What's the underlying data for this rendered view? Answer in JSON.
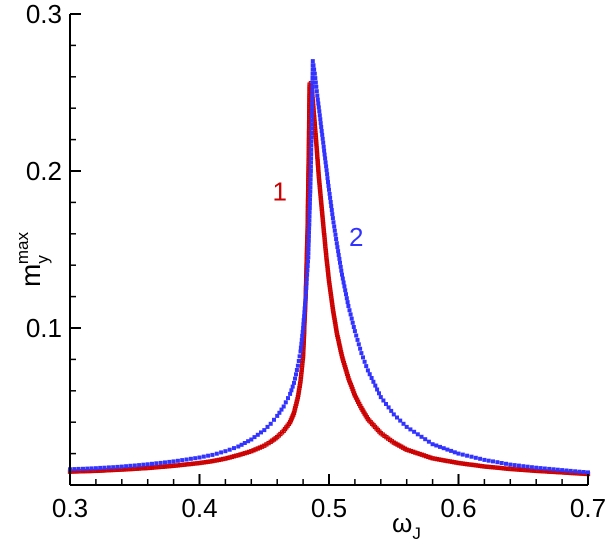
{
  "chart_data": {
    "type": "scatter",
    "xlabel": {
      "main": "ω",
      "sub": "J"
    },
    "ylabel": {
      "main": "m",
      "sub": "y",
      "sup": "max"
    },
    "xlim": [
      0.3,
      0.7
    ],
    "ylim": [
      0.0,
      0.3
    ],
    "x_ticks": [
      0.3,
      0.4,
      0.5,
      0.6,
      0.7
    ],
    "x_tick_labels": [
      "0.3",
      "0.4",
      "0.5",
      "0.6",
      "0.7"
    ],
    "y_ticks": [
      0.1,
      0.2,
      0.3
    ],
    "y_tick_labels": [
      "0.1",
      "0.2",
      "0.3"
    ],
    "grid": false,
    "legend": "none",
    "series": [
      {
        "name": "1",
        "color": "#cc0000",
        "marker": "small-open-square-with-line",
        "points": [
          [
            0.3,
            0.0085
          ],
          [
            0.32,
            0.009
          ],
          [
            0.34,
            0.0098
          ],
          [
            0.36,
            0.0108
          ],
          [
            0.38,
            0.0122
          ],
          [
            0.4,
            0.014
          ],
          [
            0.41,
            0.0152
          ],
          [
            0.42,
            0.0168
          ],
          [
            0.43,
            0.019
          ],
          [
            0.44,
            0.0215
          ],
          [
            0.45,
            0.025
          ],
          [
            0.455,
            0.0275
          ],
          [
            0.46,
            0.0305
          ],
          [
            0.465,
            0.0345
          ],
          [
            0.47,
            0.04
          ],
          [
            0.473,
            0.046
          ],
          [
            0.476,
            0.056
          ],
          [
            0.478,
            0.066
          ],
          [
            0.48,
            0.082
          ],
          [
            0.482,
            0.12
          ],
          [
            0.4835,
            0.165
          ],
          [
            0.4845,
            0.22
          ],
          [
            0.485,
            0.255
          ],
          [
            0.486,
            0.256
          ],
          [
            0.487,
            0.25
          ],
          [
            0.488,
            0.24
          ],
          [
            0.49,
            0.22
          ],
          [
            0.492,
            0.198
          ],
          [
            0.494,
            0.18
          ],
          [
            0.496,
            0.162
          ],
          [
            0.498,
            0.145
          ],
          [
            0.5,
            0.13
          ],
          [
            0.503,
            0.112
          ],
          [
            0.506,
            0.097
          ],
          [
            0.51,
            0.082
          ],
          [
            0.515,
            0.068
          ],
          [
            0.52,
            0.057
          ],
          [
            0.525,
            0.049
          ],
          [
            0.53,
            0.042
          ],
          [
            0.54,
            0.033
          ],
          [
            0.55,
            0.027
          ],
          [
            0.56,
            0.0225
          ],
          [
            0.58,
            0.017
          ],
          [
            0.6,
            0.014
          ],
          [
            0.62,
            0.0118
          ],
          [
            0.64,
            0.0102
          ],
          [
            0.66,
            0.009
          ],
          [
            0.68,
            0.008
          ],
          [
            0.7,
            0.007
          ]
        ]
      },
      {
        "name": "2",
        "color": "#3333ff",
        "marker": "small-filled-square",
        "points": [
          [
            0.3,
            0.01
          ],
          [
            0.32,
            0.0107
          ],
          [
            0.34,
            0.0117
          ],
          [
            0.36,
            0.0132
          ],
          [
            0.38,
            0.015
          ],
          [
            0.4,
            0.0175
          ],
          [
            0.41,
            0.0192
          ],
          [
            0.42,
            0.0215
          ],
          [
            0.43,
            0.0245
          ],
          [
            0.44,
            0.029
          ],
          [
            0.45,
            0.035
          ],
          [
            0.455,
            0.039
          ],
          [
            0.46,
            0.044
          ],
          [
            0.465,
            0.05
          ],
          [
            0.47,
            0.058
          ],
          [
            0.473,
            0.065
          ],
          [
            0.476,
            0.076
          ],
          [
            0.478,
            0.085
          ],
          [
            0.48,
            0.1
          ],
          [
            0.482,
            0.12
          ],
          [
            0.484,
            0.145
          ],
          [
            0.486,
            0.2
          ],
          [
            0.4875,
            0.27
          ],
          [
            0.489,
            0.262
          ],
          [
            0.491,
            0.248
          ],
          [
            0.494,
            0.228
          ],
          [
            0.497,
            0.208
          ],
          [
            0.5,
            0.188
          ],
          [
            0.503,
            0.17
          ],
          [
            0.506,
            0.154
          ],
          [
            0.51,
            0.134
          ],
          [
            0.515,
            0.114
          ],
          [
            0.52,
            0.098
          ],
          [
            0.525,
            0.084
          ],
          [
            0.53,
            0.073
          ],
          [
            0.54,
            0.056
          ],
          [
            0.55,
            0.045
          ],
          [
            0.56,
            0.037
          ],
          [
            0.58,
            0.026
          ],
          [
            0.6,
            0.02
          ],
          [
            0.62,
            0.016
          ],
          [
            0.64,
            0.013
          ],
          [
            0.66,
            0.011
          ],
          [
            0.68,
            0.0095
          ],
          [
            0.7,
            0.008
          ]
        ]
      }
    ],
    "annotations": [
      {
        "text": "1",
        "x": 0.462,
        "y": 0.187,
        "color": "#cc0000"
      },
      {
        "text": "2",
        "x": 0.521,
        "y": 0.158,
        "color": "#3333ff"
      }
    ]
  }
}
